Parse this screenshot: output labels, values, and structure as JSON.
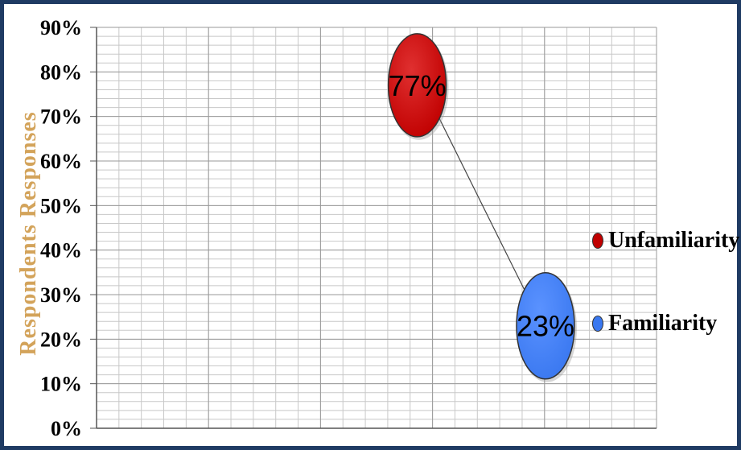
{
  "chart_data": {
    "type": "scatter",
    "title": "",
    "xlabel": "",
    "ylabel": "Respondents Responses",
    "ylim": [
      0,
      90
    ],
    "y_ticks": [
      "0%",
      "10%",
      "20%",
      "30%",
      "40%",
      "50%",
      "60%",
      "70%",
      "80%",
      "90%"
    ],
    "grid": true,
    "legend_position": "right",
    "series": [
      {
        "name": "Unfamiliarity",
        "value": 77,
        "label": "77%",
        "color": "#c00000"
      },
      {
        "name": "Familiarity",
        "value": 23,
        "label": "23%",
        "color": "#3a78f0"
      }
    ],
    "connecting_line": true
  },
  "colors": {
    "frame": "#1f3b63",
    "ylabel": "#d3a35a",
    "grid": "#c8c8c8"
  }
}
